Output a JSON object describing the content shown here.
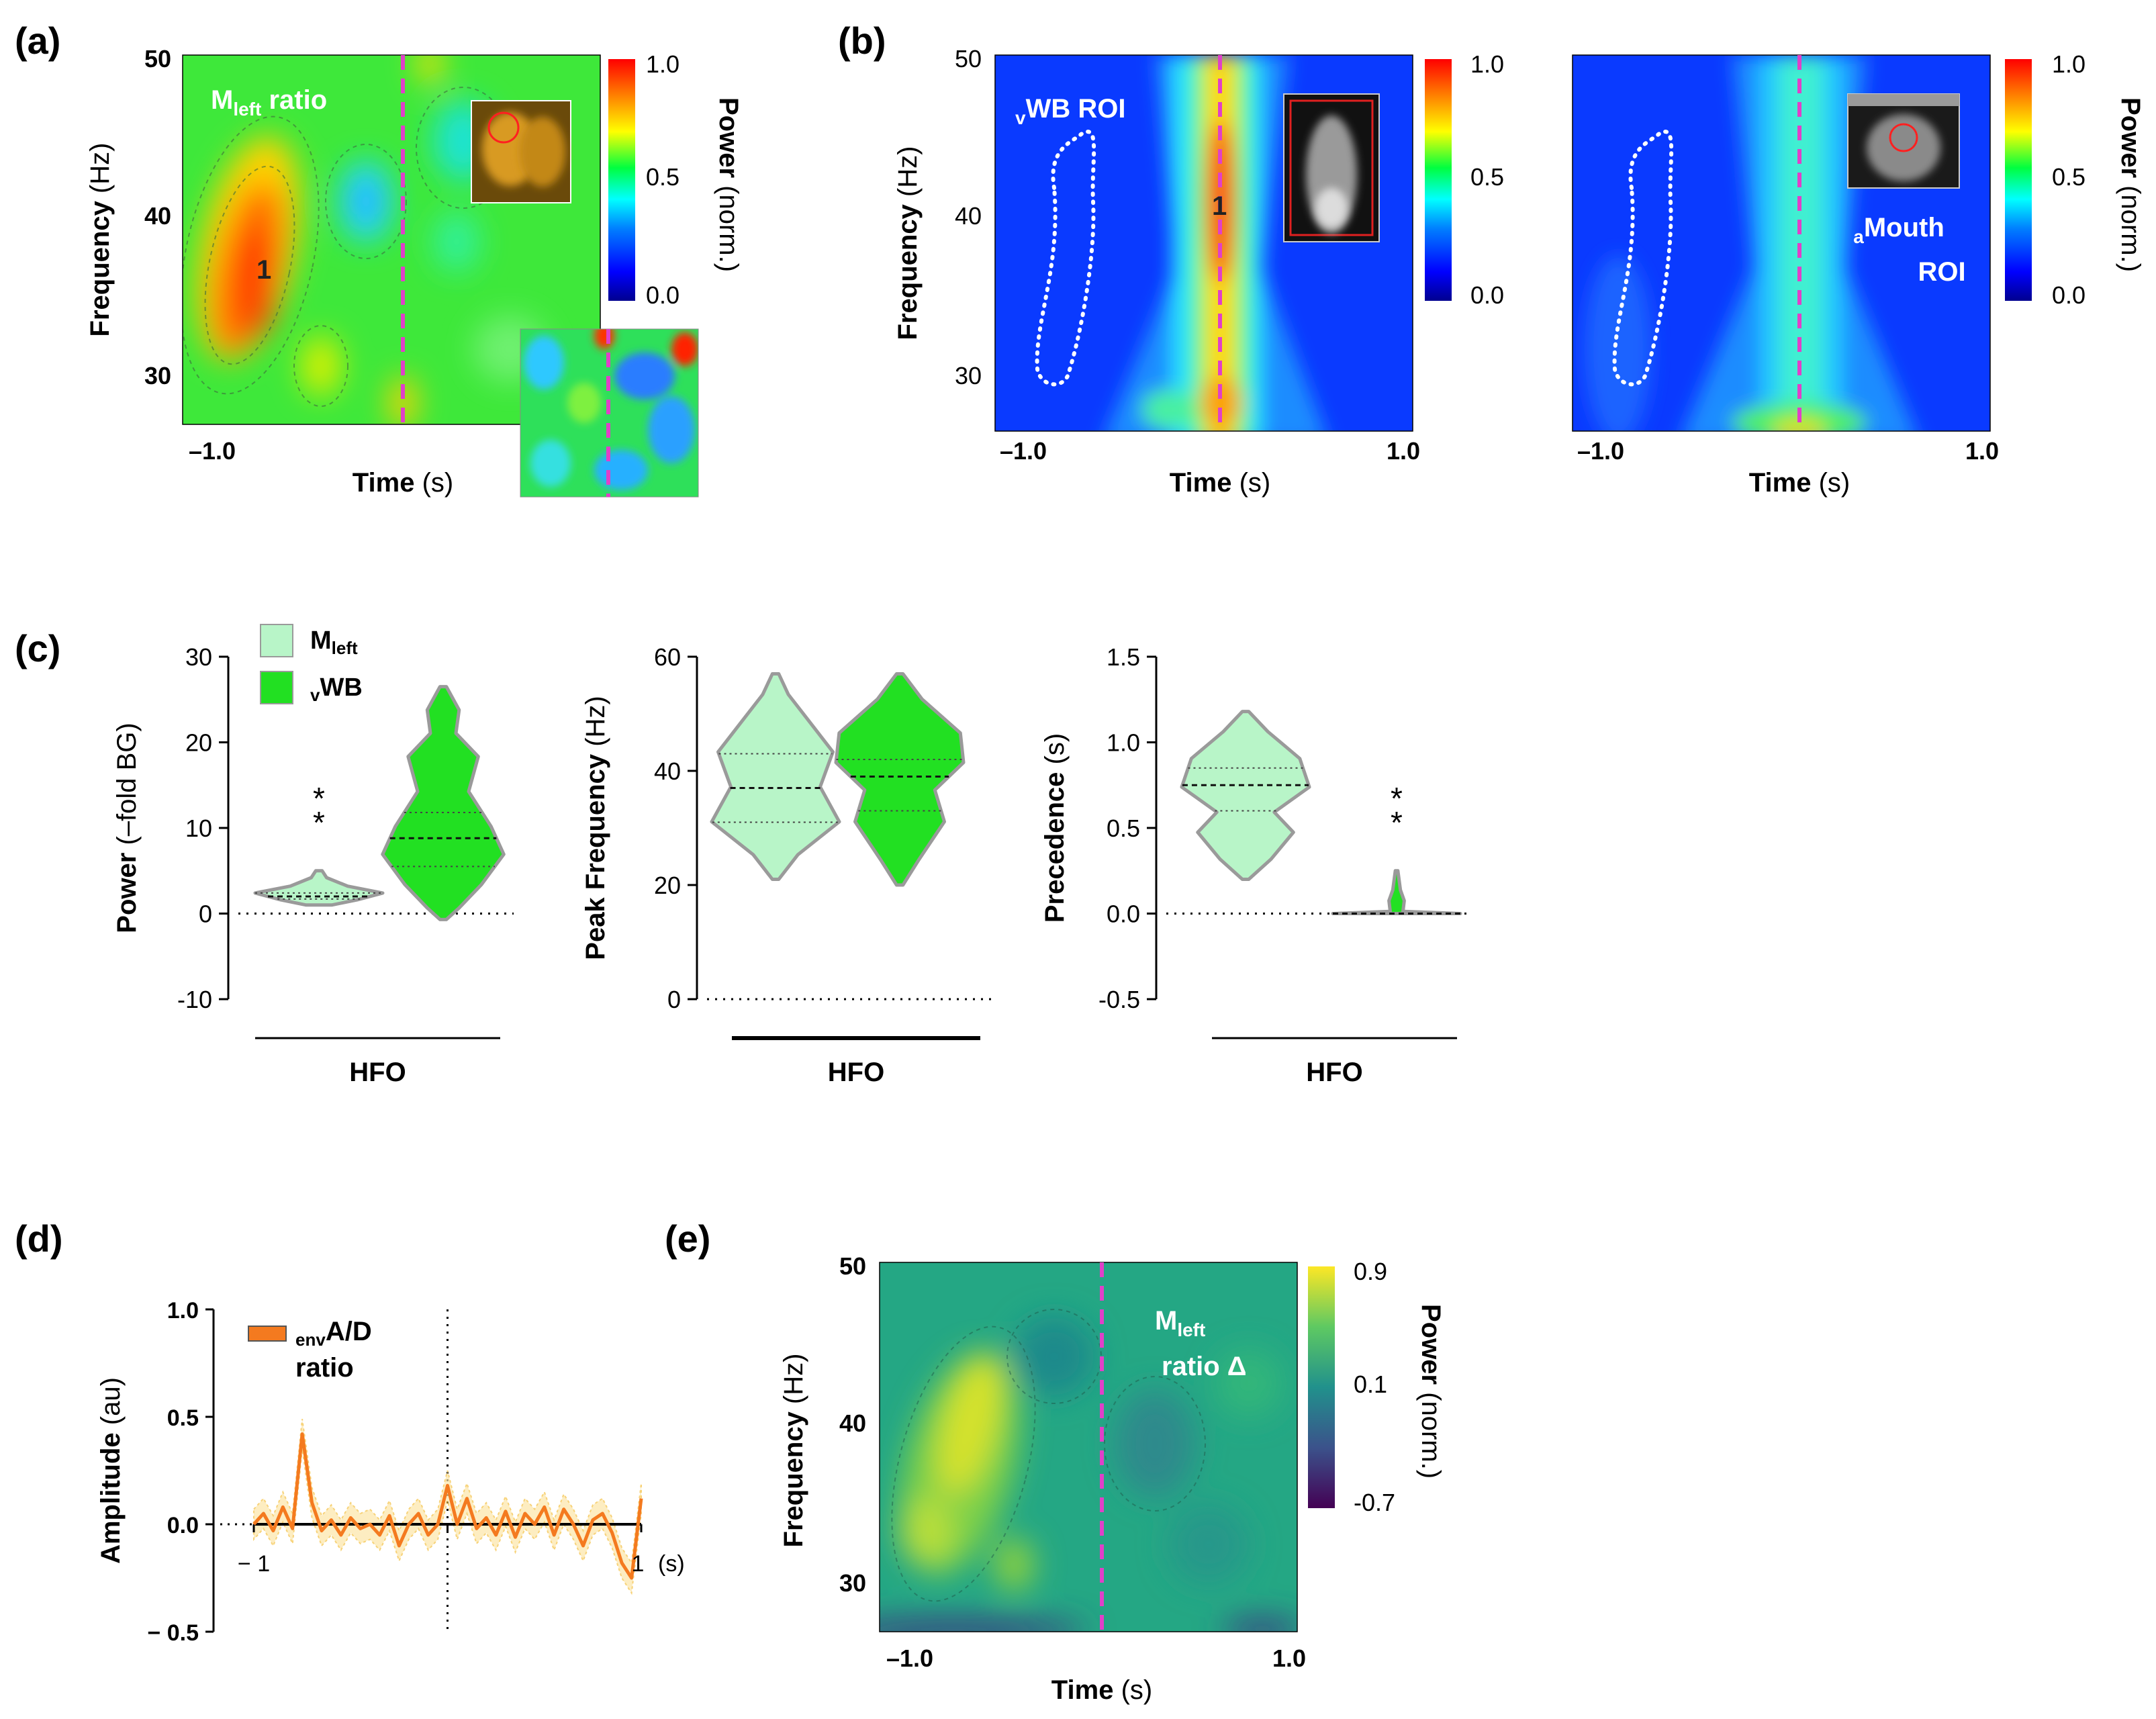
{
  "colors": {
    "jet_stops": [
      "#00008f",
      "#0000ff",
      "#0080ff",
      "#00ffff",
      "#00ff40",
      "#ffff00",
      "#ff8000",
      "#ff0000"
    ],
    "viridis_stops": [
      "#440154",
      "#3b528b",
      "#21918c",
      "#5ec962",
      "#fde725"
    ],
    "magenta": "#e040c8",
    "light_green": "#b8f5c8",
    "bright_green": "#22e022",
    "violin_stroke": "#9a9a9a",
    "orange": "#f47a1f"
  },
  "panel_a": {
    "label": "(a)",
    "chart_data": {
      "type": "heatmap",
      "title": "M_left ratio",
      "title_main": "M",
      "title_sub": "left",
      "title_rest": " ratio",
      "xlabel": "Time",
      "xunit": "(s)",
      "ylabel": "Frequency",
      "yunit": "(Hz)",
      "x_ticks": [
        "–1.0"
      ],
      "y_ticks": [
        "50",
        "40",
        "30"
      ],
      "xlim": [
        -1.2,
        1.0
      ],
      "ylim": [
        27,
        50
      ],
      "event_time": 0,
      "peak_label": "1",
      "colorbar": {
        "ticks": [
          "1.0",
          "0.5",
          "0.0"
        ],
        "label": "Power",
        "unit": "(norm.)"
      }
    }
  },
  "panel_b": {
    "label": "(b)",
    "chart_data": [
      {
        "type": "heatmap",
        "title": "vWB ROI",
        "title_sub": "v",
        "title_main": "WB ROI",
        "xlabel": "Time",
        "xunit": "(s)",
        "ylabel": "Frequency",
        "yunit": "(Hz)",
        "x_ticks": [
          "–1.0",
          "1.0"
        ],
        "y_ticks": [
          "50",
          "40",
          "30"
        ],
        "xlim": [
          -1.2,
          1.0
        ],
        "ylim": [
          27,
          50
        ],
        "event_time": 0,
        "peak_label": "1",
        "colorbar": {
          "ticks": [
            "1.0",
            "0.5",
            "0.0"
          ]
        }
      },
      {
        "type": "heatmap",
        "title": "aMouth ROI",
        "title_sub": "a",
        "title_line1": "Mouth",
        "title_line2": "ROI",
        "xlabel": "Time",
        "xunit": "(s)",
        "x_ticks": [
          "–1.0",
          "1.0"
        ],
        "xlim": [
          -1.2,
          1.0
        ],
        "ylim": [
          27,
          50
        ],
        "event_time": 0,
        "colorbar": {
          "ticks": [
            "1.0",
            "0.5",
            "0.0"
          ],
          "label": "Power",
          "unit": "(norm.)"
        }
      }
    ]
  },
  "panel_c": {
    "label": "(c)",
    "legend": [
      {
        "main": "M",
        "sub": "left"
      },
      {
        "sub": "v",
        "main": "WB"
      }
    ],
    "chart_data": [
      {
        "type": "violin",
        "ylabel": "Power",
        "yunit": "(–fold BG)",
        "y_ticks": [
          "30",
          "20",
          "10",
          "0",
          "-10"
        ],
        "ylim": [
          -10,
          30
        ],
        "group_label": "HFO",
        "significance": "**",
        "series": [
          {
            "name": "Mleft",
            "min": 1.0,
            "max": 5.0,
            "q1": 1.7,
            "median": 2.0,
            "q3": 2.4
          },
          {
            "name": "vWB",
            "min": -0.7,
            "max": 26.5,
            "q1": 5.5,
            "median": 8.8,
            "q3": 11.8
          }
        ]
      },
      {
        "type": "violin",
        "ylabel": "Peak Frequency",
        "yunit": "(Hz)",
        "y_ticks": [
          "60",
          "40",
          "20",
          "0"
        ],
        "ylim": [
          0,
          60
        ],
        "group_label": "HFO",
        "series": [
          {
            "name": "Mleft",
            "min": 21,
            "max": 57,
            "q1": 31,
            "median": 37,
            "q3": 43
          },
          {
            "name": "vWB",
            "min": 20,
            "max": 57,
            "q1": 33,
            "median": 39,
            "q3": 42
          }
        ]
      },
      {
        "type": "violin",
        "ylabel": "Precedence",
        "yunit": "(s)",
        "y_ticks": [
          "1.5",
          "1.0",
          "0.5",
          "0.0",
          "-0.5"
        ],
        "ylim": [
          -0.5,
          1.5
        ],
        "group_label": "HFO",
        "significance": "**",
        "series": [
          {
            "name": "Mleft",
            "min": 0.2,
            "max": 1.18,
            "q1": 0.6,
            "median": 0.75,
            "q3": 0.85
          },
          {
            "name": "vWB",
            "min": 0.0,
            "max": 0.25,
            "median": 0.0
          }
        ]
      }
    ]
  },
  "panel_d": {
    "label": "(d)",
    "chart_data": {
      "type": "line",
      "ylabel": "Amplitude",
      "yunit": "(au)",
      "y_ticks": [
        "1.0",
        "0.5",
        "0.0",
        "− 0.5"
      ],
      "ylim": [
        -0.5,
        1.0
      ],
      "x_tick_left": "− 1",
      "x_tick_right": "1",
      "x_unit": "(s)",
      "xlim": [
        -1,
        1
      ],
      "legend_sub": "env",
      "legend_main": "A/D",
      "legend_line2": "ratio",
      "series": [
        {
          "name": "envA/D ratio",
          "x": [
            -1.0,
            -0.95,
            -0.9,
            -0.85,
            -0.8,
            -0.75,
            -0.7,
            -0.65,
            -0.6,
            -0.55,
            -0.5,
            -0.45,
            -0.4,
            -0.35,
            -0.3,
            -0.25,
            -0.2,
            -0.15,
            -0.1,
            -0.05,
            0.0,
            0.05,
            0.1,
            0.15,
            0.2,
            0.25,
            0.3,
            0.35,
            0.4,
            0.45,
            0.5,
            0.55,
            0.6,
            0.65,
            0.7,
            0.75,
            0.8,
            0.85,
            0.9,
            0.95,
            1.0
          ],
          "y": [
            0.0,
            0.05,
            -0.03,
            0.08,
            -0.02,
            0.42,
            0.1,
            -0.03,
            0.02,
            -0.05,
            0.03,
            -0.02,
            0.0,
            -0.05,
            0.04,
            -0.1,
            0.0,
            0.05,
            -0.05,
            0.0,
            0.18,
            0.0,
            0.12,
            -0.02,
            0.03,
            -0.05,
            0.06,
            -0.06,
            0.05,
            0.0,
            0.08,
            -0.05,
            0.07,
            0.0,
            -0.1,
            0.02,
            0.05,
            -0.04,
            -0.18,
            -0.25,
            0.12
          ]
        }
      ]
    }
  },
  "panel_e": {
    "label": "(e)",
    "chart_data": {
      "type": "heatmap",
      "title_main": "M",
      "title_sub": "left",
      "title_line2": "ratio Δ",
      "xlabel": "Time",
      "xunit": "(s)",
      "ylabel": "Frequency",
      "yunit": "(Hz)",
      "x_ticks": [
        "–1.0",
        "1.0"
      ],
      "y_ticks": [
        "50",
        "40",
        "30"
      ],
      "xlim": [
        -1.2,
        1.0
      ],
      "ylim": [
        27,
        50
      ],
      "event_time": 0,
      "colorbar": {
        "ticks": [
          "0.9",
          "0.1",
          "-0.7"
        ],
        "label": "Power",
        "unit": "(norm.)"
      }
    }
  }
}
